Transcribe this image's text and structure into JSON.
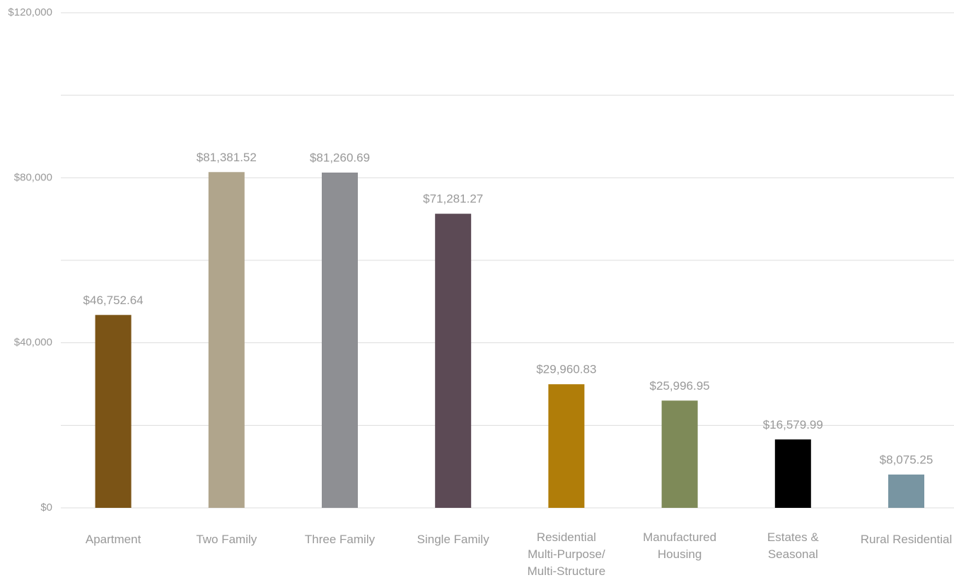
{
  "chart_data": {
    "type": "bar",
    "categories": [
      "Apartment",
      "Two Family",
      "Three Family",
      "Single Family",
      "Residential\nMulti-Purpose/\nMulti-Structure",
      "Manufactured\nHousing",
      "Estates &\nSeasonal",
      "Rural Residential"
    ],
    "values": [
      46752.64,
      81381.52,
      81260.69,
      71281.27,
      29960.83,
      25996.95,
      16579.99,
      8075.25
    ],
    "value_labels": [
      "$46,752.64",
      "$81,381.52",
      "$81,260.69",
      "$71,281.27",
      "$29,960.83",
      "$25,996.95",
      "$16,579.99",
      "$8,075.25"
    ],
    "colors": [
      "#7b5416",
      "#b0a58c",
      "#8e8f93",
      "#5c4a55",
      "#b07d09",
      "#7e8a58",
      "#000000",
      "#7895a2"
    ],
    "ylim": [
      0,
      120000
    ],
    "yticks": [
      {
        "value": 0,
        "label": "$0"
      },
      {
        "value": 40000,
        "label": "$40,000"
      },
      {
        "value": 80000,
        "label": "$80,000"
      },
      {
        "value": 120000,
        "label": "$120,000"
      }
    ],
    "minor_yticks": [
      20000,
      60000,
      100000
    ],
    "grid": true
  }
}
